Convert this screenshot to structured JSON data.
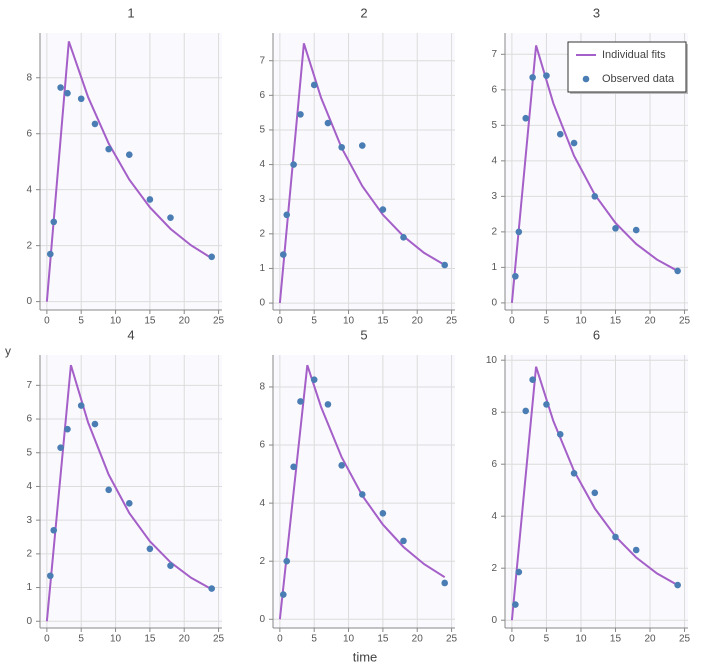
{
  "xlabel": "time",
  "ylabel": "y",
  "chart_data": [
    {
      "type": "line",
      "title": "1",
      "xlim": [
        -1,
        25.5
      ],
      "xticks": [
        0,
        5,
        10,
        15,
        20,
        25
      ],
      "ylim": [
        -0.3,
        9.6
      ],
      "yticks": [
        0,
        2,
        4,
        6,
        8
      ],
      "grid": true,
      "series": [
        {
          "name": "Individual fits",
          "type": "line",
          "color": "#a45fc8",
          "x": [
            0,
            3.2,
            6,
            9,
            12,
            15,
            18,
            21,
            24
          ],
          "values": [
            0,
            9.3,
            7.31,
            5.65,
            4.36,
            3.37,
            2.6,
            2.01,
            1.55
          ]
        },
        {
          "name": "Observed data",
          "type": "scatter",
          "color": "#4a7db3",
          "x": [
            0.5,
            1,
            2,
            3,
            5,
            7,
            9,
            12,
            15,
            18,
            24
          ],
          "values": [
            1.7,
            2.85,
            7.65,
            7.45,
            7.25,
            6.35,
            5.45,
            5.25,
            3.65,
            3.0,
            1.6
          ]
        }
      ]
    },
    {
      "type": "line",
      "title": "2",
      "xlim": [
        -1,
        25.5
      ],
      "xticks": [
        0,
        5,
        10,
        15,
        20,
        25
      ],
      "ylim": [
        -0.2,
        7.8
      ],
      "yticks": [
        0,
        1,
        2,
        3,
        4,
        5,
        6,
        7
      ],
      "grid": true,
      "series": [
        {
          "name": "Individual fits",
          "type": "line",
          "color": "#a45fc8",
          "x": [
            0,
            3.5,
            6,
            9,
            12,
            15,
            18,
            21,
            24
          ],
          "values": [
            0,
            7.5,
            5.93,
            4.48,
            3.38,
            2.55,
            1.93,
            1.45,
            1.1
          ]
        },
        {
          "name": "Observed data",
          "type": "scatter",
          "color": "#4a7db3",
          "x": [
            0.5,
            1,
            2,
            3,
            5,
            7,
            9,
            12,
            15,
            18,
            24
          ],
          "values": [
            1.4,
            2.55,
            4.0,
            5.45,
            6.3,
            5.2,
            4.5,
            4.55,
            2.7,
            1.9,
            1.1
          ]
        }
      ]
    },
    {
      "type": "line",
      "title": "3",
      "xlim": [
        -1,
        25.5
      ],
      "xticks": [
        0,
        5,
        10,
        15,
        20,
        25
      ],
      "ylim": [
        -0.2,
        7.6
      ],
      "yticks": [
        0,
        1,
        2,
        3,
        4,
        5,
        6,
        7
      ],
      "grid": true,
      "legend": "top-right",
      "series": [
        {
          "name": "Individual fits",
          "type": "line",
          "color": "#a45fc8",
          "x": [
            0,
            3.5,
            6,
            9,
            12,
            15,
            18,
            21,
            24
          ],
          "values": [
            0,
            7.25,
            5.62,
            4.14,
            3.05,
            2.25,
            1.66,
            1.22,
            0.9
          ]
        },
        {
          "name": "Observed data",
          "type": "scatter",
          "color": "#4a7db3",
          "x": [
            0.5,
            1,
            2,
            3,
            5,
            7,
            9,
            12,
            15,
            18,
            24
          ],
          "values": [
            0.75,
            2.0,
            5.2,
            6.35,
            6.4,
            4.75,
            4.5,
            3.0,
            2.1,
            2.05,
            0.9
          ]
        }
      ]
    },
    {
      "type": "line",
      "title": "4",
      "xlim": [
        -1,
        25.5
      ],
      "xticks": [
        0,
        5,
        10,
        15,
        20,
        25
      ],
      "ylim": [
        -0.2,
        7.9
      ],
      "yticks": [
        0,
        1,
        2,
        3,
        4,
        5,
        6,
        7
      ],
      "grid": true,
      "series": [
        {
          "name": "Individual fits",
          "type": "line",
          "color": "#a45fc8",
          "x": [
            0,
            3.5,
            6,
            9,
            12,
            15,
            18,
            21,
            24
          ],
          "values": [
            0,
            7.6,
            5.9,
            4.35,
            3.21,
            2.37,
            1.75,
            1.29,
            0.95
          ]
        },
        {
          "name": "Observed data",
          "type": "scatter",
          "color": "#4a7db3",
          "x": [
            0.5,
            1,
            2,
            3,
            5,
            7,
            9,
            12,
            15,
            18,
            24
          ],
          "values": [
            1.35,
            2.7,
            5.15,
            5.7,
            6.4,
            5.85,
            3.9,
            3.5,
            2.15,
            1.65,
            0.97
          ]
        }
      ]
    },
    {
      "type": "line",
      "title": "5",
      "xlim": [
        -1,
        25.5
      ],
      "xticks": [
        0,
        5,
        10,
        15,
        20,
        25
      ],
      "ylim": [
        -0.3,
        9.1
      ],
      "yticks": [
        0,
        2,
        4,
        6,
        8
      ],
      "grid": true,
      "series": [
        {
          "name": "Individual fits",
          "type": "line",
          "color": "#a45fc8",
          "x": [
            0,
            4,
            6,
            9,
            12,
            15,
            18,
            21,
            24
          ],
          "values": [
            0,
            8.75,
            7.31,
            5.58,
            4.26,
            3.26,
            2.49,
            1.9,
            1.45
          ]
        },
        {
          "name": "Observed data",
          "type": "scatter",
          "color": "#4a7db3",
          "x": [
            0.5,
            1,
            2,
            3,
            5,
            7,
            9,
            12,
            15,
            18,
            24
          ],
          "values": [
            0.85,
            2.0,
            5.25,
            7.5,
            8.25,
            7.4,
            5.3,
            4.3,
            3.65,
            2.7,
            1.25
          ]
        }
      ]
    },
    {
      "type": "line",
      "title": "6",
      "xlim": [
        -1,
        25.5
      ],
      "xticks": [
        0,
        5,
        10,
        15,
        20,
        25
      ],
      "ylim": [
        -0.3,
        10.2
      ],
      "yticks": [
        0,
        2,
        4,
        6,
        8,
        10
      ],
      "grid": true,
      "series": [
        {
          "name": "Individual fits",
          "type": "line",
          "color": "#a45fc8",
          "x": [
            0,
            3.5,
            6,
            9,
            12,
            15,
            18,
            21,
            24
          ],
          "values": [
            0,
            9.75,
            7.66,
            5.74,
            4.3,
            3.22,
            2.41,
            1.8,
            1.35
          ]
        },
        {
          "name": "Observed data",
          "type": "scatter",
          "color": "#4a7db3",
          "x": [
            0.5,
            1,
            2,
            3,
            5,
            7,
            9,
            12,
            15,
            18,
            24
          ],
          "values": [
            0.6,
            1.85,
            8.05,
            9.25,
            8.3,
            7.15,
            5.65,
            4.9,
            3.2,
            2.7,
            1.35
          ]
        }
      ]
    }
  ]
}
